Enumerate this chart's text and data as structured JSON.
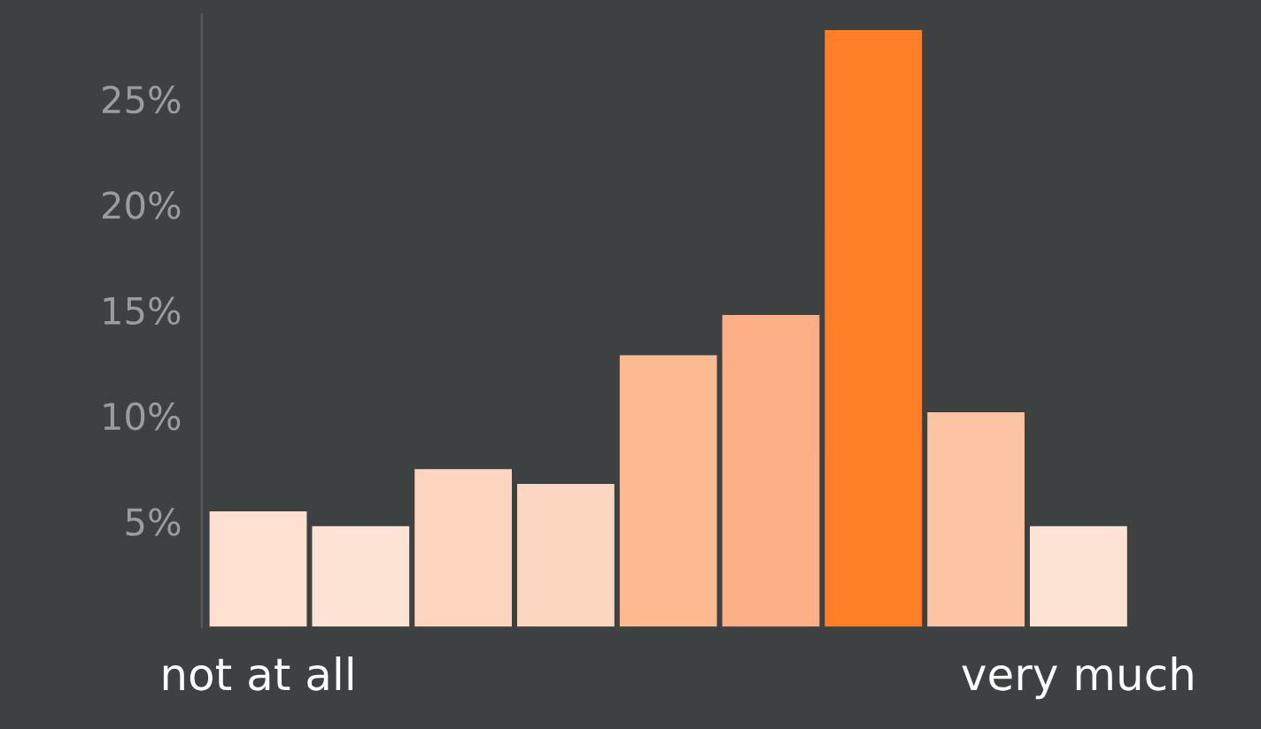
{
  "chart_data": {
    "type": "bar",
    "categories": [
      "not at all",
      null,
      null,
      null,
      null,
      null,
      null,
      null,
      "very much"
    ],
    "values": [
      5.5,
      4.8,
      7.5,
      6.8,
      12.9,
      14.8,
      28.3,
      10.2,
      4.8
    ],
    "colors": [
      "#fde0d0",
      "#fce3d3",
      "#fdd5bf",
      "#fdd6c0",
      "#fdba90",
      "#fdb088",
      "#ff7f27",
      "#fdc4a4",
      "#fce3d3"
    ],
    "ylim": [
      0,
      29
    ],
    "yticks": [
      {
        "value": 5,
        "label": "5%"
      },
      {
        "value": 10,
        "label": "10%"
      },
      {
        "value": 15,
        "label": "15%"
      },
      {
        "value": 20,
        "label": "20%"
      },
      {
        "value": 25,
        "label": "25%"
      }
    ],
    "grid": false
  }
}
